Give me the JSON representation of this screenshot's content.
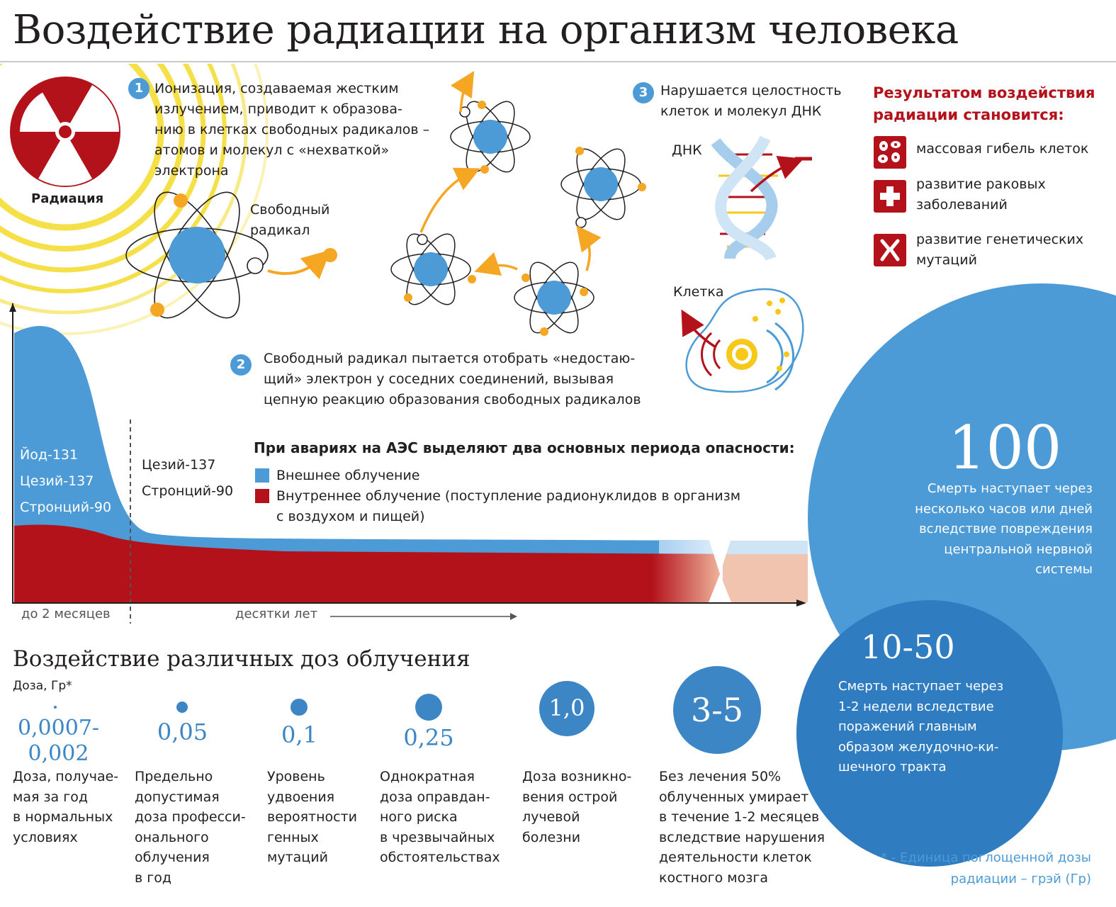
{
  "title": "Воздействие радиации на организм человека",
  "radiation_label": "Радиация",
  "step1": {
    "number": "1",
    "lines": [
      "Ионизация, создаваемая жестким",
      "излучением, приводит к образова-",
      "нию в клетках свободных радикалов –",
      "атомов и молекул с «нехваткой»",
      "электрона"
    ]
  },
  "free_radical_label": [
    "Свободный",
    "радикал"
  ],
  "step2": {
    "number": "2",
    "lines": [
      "Свободный радикал пытается отобрать «недостаю-",
      "щий» электрон у соседних соединений, вызывая",
      "цепную реакцию образования свободных радикалов"
    ]
  },
  "step3": {
    "number": "3",
    "lines": [
      "Нарушается целостность",
      "клеток и молекул ДНК"
    ]
  },
  "dna_label": "ДНК",
  "cell_label": "Клетка",
  "results": {
    "heading": [
      "Результатом воздействия",
      "радиации становится:"
    ],
    "items": [
      {
        "icon": "cells-icon",
        "lines": [
          "массовая гибель клеток"
        ]
      },
      {
        "icon": "medical-cross-icon",
        "lines": [
          "развитие раковых",
          "заболеваний"
        ]
      },
      {
        "icon": "chromosome-icon",
        "lines": [
          "развитие генетических",
          "мутаций"
        ]
      }
    ]
  },
  "periods": {
    "heading": "При авариях на АЭС выделяют два основных периода опасности:",
    "legend": [
      {
        "label": "Внешнее облучение",
        "color": "#4d9bd6"
      },
      {
        "label": "Внутреннее облучение (поступление радионуклидов в организм",
        "label2": "с воздухом и пищей)",
        "color": "#b3121b"
      }
    ],
    "early_isotopes": [
      "Йод-131",
      "Цезий-137",
      "Стронций-90"
    ],
    "late_isotopes": [
      "Цезий-137",
      "Стронций-90"
    ],
    "axis_early": "до 2 месяцев",
    "axis_late": "десятки лет"
  },
  "doses": {
    "heading": "Воздействие различных доз облучения",
    "unit_label": "Доза, Гр*",
    "items": [
      {
        "value": "0,0007-",
        "value2": "0,002",
        "lines": [
          "Доза, получае-",
          "мая за год",
          "в нормальных",
          "условиях"
        ]
      },
      {
        "value": "0,05",
        "lines": [
          "Предельно",
          "допустимая",
          "доза професси-",
          "онального",
          "облучения",
          "в год"
        ]
      },
      {
        "value": "0,1",
        "lines": [
          "Уровень",
          "удвоения",
          "вероятности",
          "генных",
          "мутаций"
        ]
      },
      {
        "value": "0,25",
        "lines": [
          "Однократная",
          "доза оправдан-",
          "ного риска",
          "в чрезвычайных",
          "обстоятельствах"
        ]
      },
      {
        "value": "1,0",
        "lines": [
          "Доза возникно-",
          "вения острой",
          "лучевой",
          "болезни"
        ]
      },
      {
        "value": "3-5",
        "lines": [
          "Без лечения 50%",
          "облученных умирает",
          "в течение 1-2 месяцев",
          "вследствие нарушения",
          "деятельности клеток",
          "костного мозга"
        ]
      }
    ],
    "big": [
      {
        "value": "100",
        "lines": [
          "Смерть наступает через",
          "несколько часов или дней",
          "вследствие повреждения",
          "центральной нервной",
          "системы"
        ]
      },
      {
        "value": "10-50",
        "lines": [
          "Смерть наступает через",
          "1-2 недели вследствие",
          "поражений главным",
          "образом желудочно-ки-",
          "шечного тракта"
        ]
      }
    ],
    "footnote": [
      "* - Единица поглощенной дозы",
      "радиации – грэй (Гр)"
    ]
  },
  "colors": {
    "blue": "#4d9bd6",
    "dark_blue": "#2f7cc0",
    "red": "#b3121b",
    "orange": "#f5a623",
    "yellow": "#f6e04a"
  }
}
